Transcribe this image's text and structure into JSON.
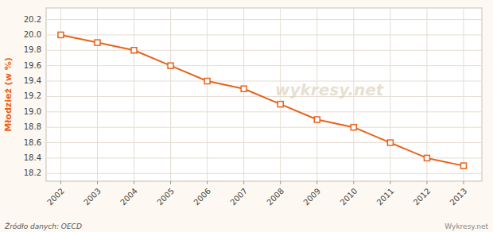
{
  "chart_data": {
    "type": "line",
    "y_label": "Młodzież (w %)",
    "x": [
      2002,
      2003,
      2004,
      2005,
      2006,
      2007,
      2008,
      2009,
      2010,
      2011,
      2012,
      2013
    ],
    "values": [
      20.0,
      19.9,
      19.8,
      19.6,
      19.4,
      19.3,
      19.1,
      18.9,
      18.8,
      18.6,
      18.4,
      18.3
    ],
    "color": "#E8621A",
    "marker": "square",
    "xlim": [
      2001.6,
      2013.5
    ],
    "xticks": [
      2002,
      2003,
      2004,
      2005,
      2006,
      2007,
      2008,
      2009,
      2010,
      2011,
      2012,
      2013
    ],
    "ylim": [
      18.1,
      20.35
    ],
    "yticks": [
      18.2,
      18.4,
      18.6,
      18.8,
      {
        "value": 19.0,
        "label": "19.0"
      },
      19.2,
      19.4,
      19.6,
      19.8,
      {
        "value": 20.0,
        "label": "20.0"
      },
      20.2
    ],
    "grid": true,
    "annotations": [
      "Źródło danych: OECD",
      "Wykresy.net",
      "wykresy.net"
    ]
  }
}
